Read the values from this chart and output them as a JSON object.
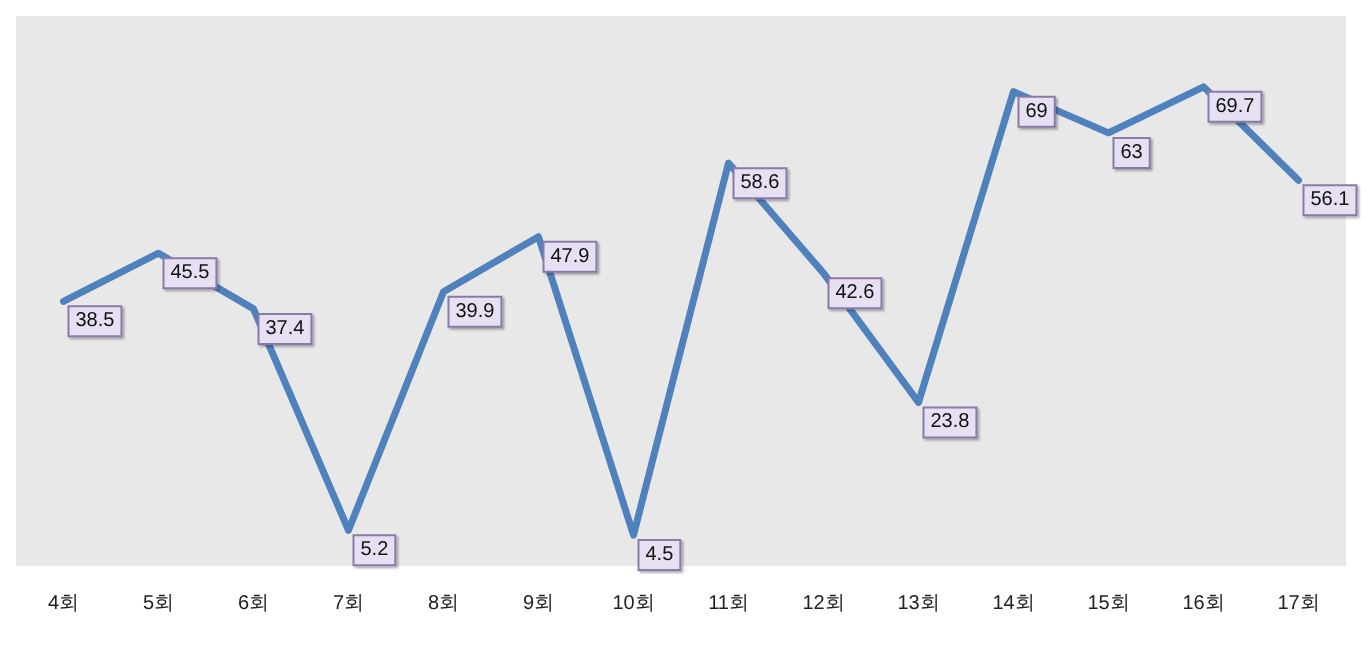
{
  "chart_data": {
    "type": "line",
    "categories": [
      "4회",
      "5회",
      "6회",
      "7회",
      "8회",
      "9회",
      "10회",
      "11회",
      "12회",
      "13회",
      "14회",
      "15회",
      "16회",
      "17회"
    ],
    "series": [
      {
        "color": "#4f81bd",
        "values": [
          38.5,
          45.5,
          37.4,
          5.2,
          39.9,
          47.9,
          4.5,
          58.6,
          42.6,
          23.8,
          69,
          63,
          69.7,
          56.1
        ]
      }
    ],
    "ylim": [
      0,
      80
    ],
    "data_labels": true,
    "tick_labels": "x",
    "marker": "none",
    "line_style": "solid"
  }
}
